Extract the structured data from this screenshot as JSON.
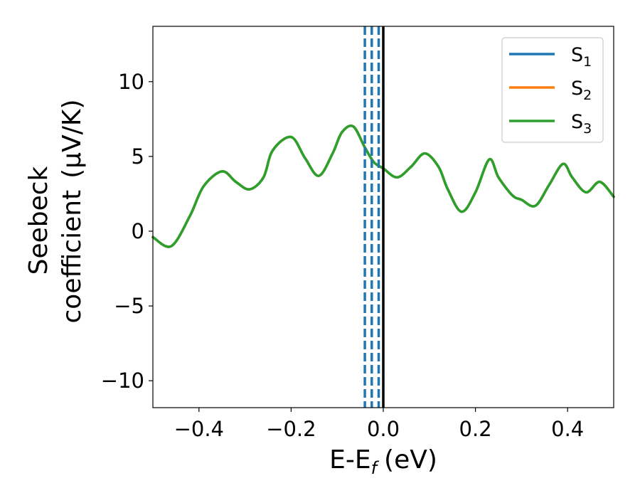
{
  "chart_data": {
    "type": "line",
    "xlabel": "E-E",
    "xlabel_sub": "f",
    "xlabel_unit": "(eV)",
    "ylabel_line1": "Seebeck",
    "ylabel_line2": "coefficient",
    "ylabel_unit": "(μV/K)",
    "xlim": [
      -0.5,
      0.5
    ],
    "ylim": [
      -11.8,
      13.7
    ],
    "xticks": [
      -0.4,
      -0.2,
      0.0,
      0.2,
      0.4
    ],
    "xtick_labels": [
      "−0.4",
      "−0.2",
      "0.0",
      "0.2",
      "0.4"
    ],
    "yticks": [
      -10,
      -5,
      0,
      5,
      10
    ],
    "ytick_labels": [
      "−10",
      "−5",
      "0",
      "5",
      "10"
    ],
    "grid": false,
    "legend_position": "top-right",
    "legend": [
      {
        "label": "S",
        "sub": "1",
        "color": "#1f77b4"
      },
      {
        "label": "S",
        "sub": "2",
        "color": "#ff7f0e"
      },
      {
        "label": "S",
        "sub": "3",
        "color": "#2ca02c"
      }
    ],
    "vlines_dashed": {
      "color": "#1f77b4",
      "x": [
        -0.04,
        -0.025,
        -0.01
      ]
    },
    "vline_solid": {
      "color": "#000000",
      "x": 0.0
    },
    "series": [
      {
        "color": "#1f77b4",
        "x": [
          -0.5,
          -0.46,
          -0.42,
          -0.39,
          -0.35,
          -0.32,
          -0.29,
          -0.26,
          -0.24,
          -0.2,
          -0.17,
          -0.14,
          -0.11,
          -0.09,
          -0.065,
          -0.04,
          -0.02,
          0.0,
          0.03,
          0.06,
          0.09,
          0.12,
          0.14,
          0.17,
          0.2,
          0.23,
          0.25,
          0.28,
          0.3,
          0.33,
          0.36,
          0.39,
          0.41,
          0.44,
          0.47,
          0.5
        ],
        "y": [
          -0.4,
          -1.0,
          1.0,
          3.0,
          4.0,
          3.3,
          2.8,
          3.6,
          5.4,
          6.3,
          4.9,
          3.7,
          5.2,
          6.6,
          7.0,
          5.6,
          4.6,
          4.2,
          3.6,
          4.3,
          5.2,
          4.3,
          2.8,
          1.3,
          2.6,
          4.8,
          3.6,
          2.4,
          2.1,
          1.7,
          3.1,
          4.5,
          3.6,
          2.6,
          3.3,
          2.3
        ]
      },
      {
        "color": "#ff7f0e",
        "x": [
          -0.5,
          -0.46,
          -0.42,
          -0.39,
          -0.35,
          -0.32,
          -0.29,
          -0.26,
          -0.24,
          -0.2,
          -0.17,
          -0.14,
          -0.11,
          -0.09,
          -0.065,
          -0.04,
          -0.02,
          0.0,
          0.03,
          0.06,
          0.09,
          0.12,
          0.14,
          0.17,
          0.2,
          0.23,
          0.25,
          0.28,
          0.3,
          0.33,
          0.36,
          0.39,
          0.41,
          0.44,
          0.47,
          0.5
        ],
        "y": [
          -0.4,
          -1.0,
          1.0,
          3.0,
          4.0,
          3.3,
          2.8,
          3.6,
          5.4,
          6.3,
          4.9,
          3.7,
          5.2,
          6.6,
          7.0,
          5.6,
          4.6,
          4.2,
          3.6,
          4.3,
          5.2,
          4.3,
          2.8,
          1.3,
          2.6,
          4.8,
          3.6,
          2.4,
          2.1,
          1.7,
          3.1,
          4.5,
          3.6,
          2.6,
          3.3,
          2.3
        ]
      },
      {
        "color": "#2ca02c",
        "x": [
          -0.5,
          -0.46,
          -0.42,
          -0.39,
          -0.35,
          -0.32,
          -0.29,
          -0.26,
          -0.24,
          -0.2,
          -0.17,
          -0.14,
          -0.11,
          -0.09,
          -0.065,
          -0.04,
          -0.02,
          0.0,
          0.03,
          0.06,
          0.09,
          0.12,
          0.14,
          0.17,
          0.2,
          0.23,
          0.25,
          0.28,
          0.3,
          0.33,
          0.36,
          0.39,
          0.41,
          0.44,
          0.47,
          0.5
        ],
        "y": [
          -0.4,
          -1.0,
          1.0,
          3.0,
          4.0,
          3.3,
          2.8,
          3.6,
          5.4,
          6.3,
          4.9,
          3.7,
          5.2,
          6.6,
          7.0,
          5.6,
          4.6,
          4.2,
          3.6,
          4.3,
          5.2,
          4.3,
          2.8,
          1.3,
          2.6,
          4.8,
          3.6,
          2.4,
          2.1,
          1.7,
          3.1,
          4.5,
          3.6,
          2.6,
          3.3,
          2.3
        ]
      }
    ]
  }
}
